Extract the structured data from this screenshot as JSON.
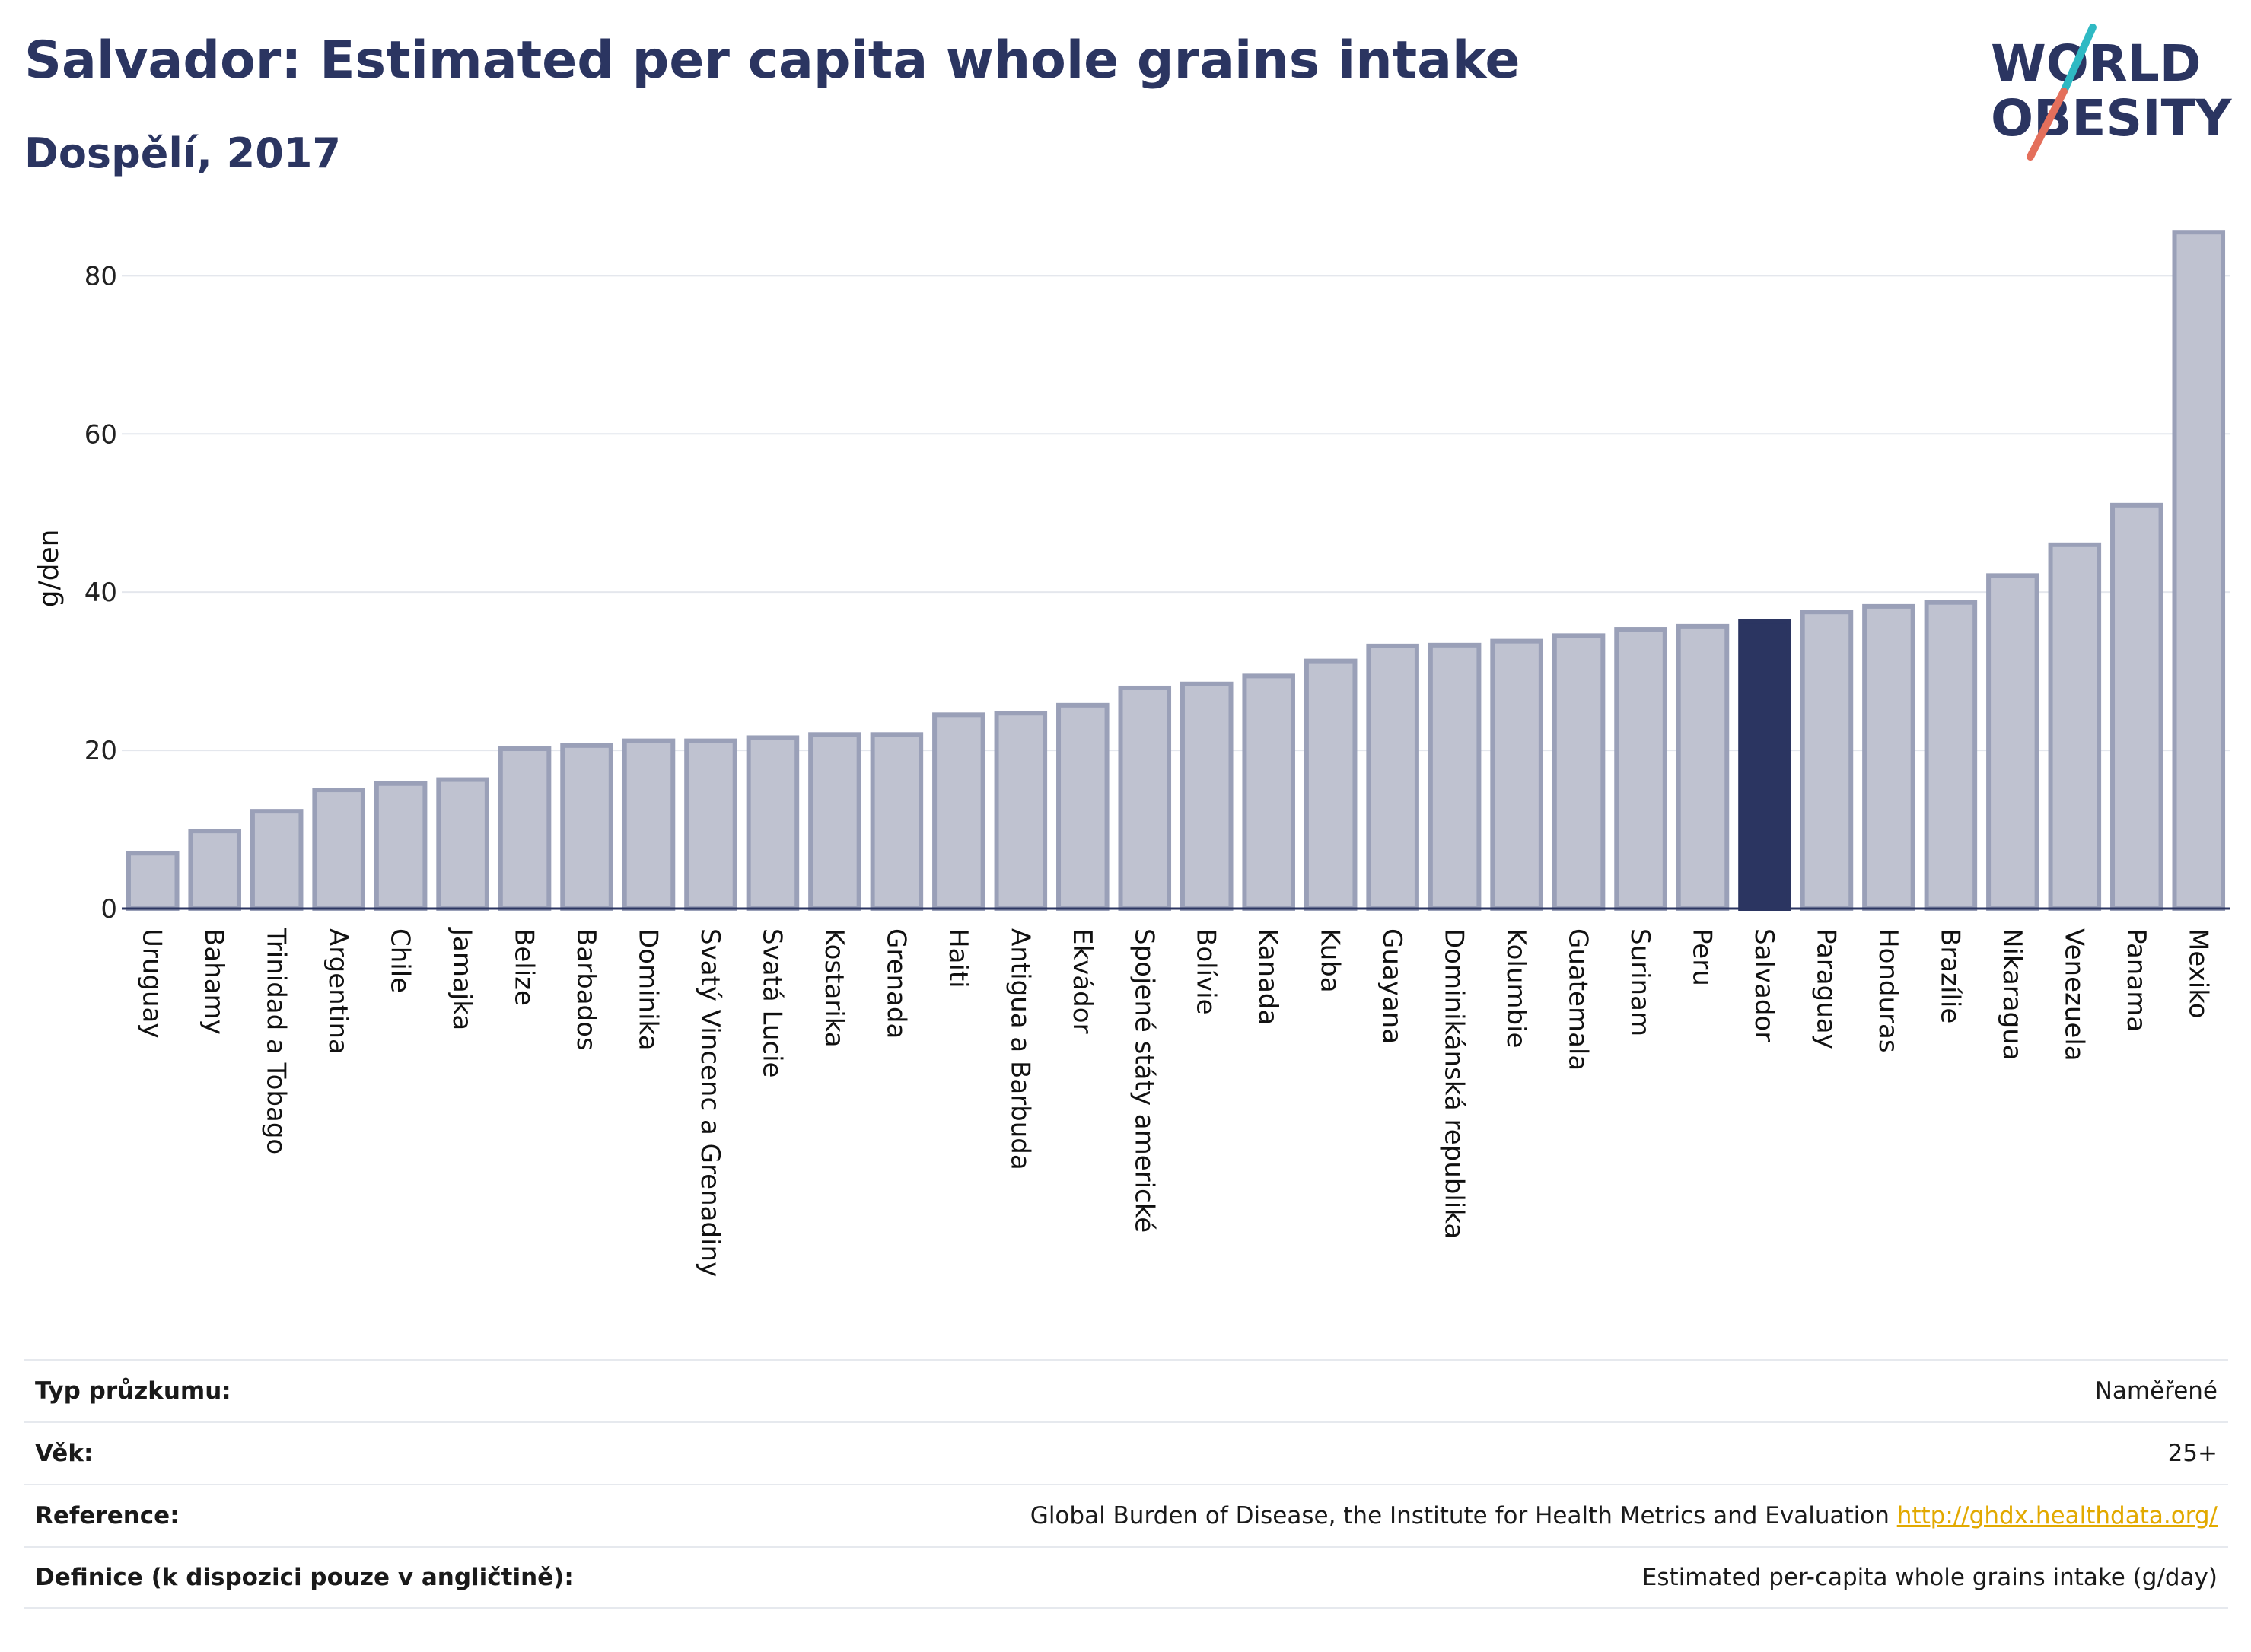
{
  "header": {
    "title": "Salvador: Estimated per capita whole grains intake",
    "subtitle": "Dospělí, 2017",
    "logo_line1": "WORLD",
    "logo_line2": "OBESITY"
  },
  "colors": {
    "bar": "#bfc2d0",
    "bar_border": "#9aa0b8",
    "highlight": "#2b3561",
    "title": "#2b3561",
    "logo_teal": "#2fb9c3",
    "logo_coral": "#e46f5b",
    "link": "#e2a900"
  },
  "chart_data": {
    "type": "bar",
    "ylabel": "g/den",
    "ylim": [
      0,
      86
    ],
    "yticks": [
      0,
      20,
      40,
      60,
      80
    ],
    "grid": true,
    "highlight": "Salvador",
    "categories": [
      "Uruguay",
      "Bahamy",
      "Trinidad a Tobago",
      "Argentina",
      "Chile",
      "Jamajka",
      "Belize",
      "Barbados",
      "Dominika",
      "Svatý Vincenc a Grenadiny",
      "Svatá Lucie",
      "Kostarika",
      "Grenada",
      "Haiti",
      "Antigua a Barbuda",
      "Ekvádor",
      "Spojené státy americké",
      "Bolívie",
      "Kanada",
      "Kuba",
      "Guayana",
      "Dominikánská republika",
      "Kolumbie",
      "Guatemala",
      "Surinam",
      "Peru",
      "Salvador",
      "Paraguay",
      "Honduras",
      "Brazílie",
      "Nikaragua",
      "Venezuela",
      "Panama",
      "Mexiko"
    ],
    "values": [
      7,
      9.8,
      12.3,
      15,
      15.8,
      16.3,
      20.2,
      20.6,
      21.2,
      21.2,
      21.6,
      22,
      22,
      24.5,
      24.7,
      25.7,
      27.9,
      28.4,
      29.4,
      31.3,
      33.2,
      33.3,
      33.8,
      34.5,
      35.3,
      35.7,
      36.3,
      37.5,
      38.2,
      38.7,
      42.1,
      46,
      51,
      85.5
    ]
  },
  "meta": {
    "rows": [
      {
        "label": "Typ průzkumu:",
        "value": "Naměřené",
        "link": ""
      },
      {
        "label": "Věk:",
        "value": "25+",
        "link": ""
      },
      {
        "label": "Reference:",
        "value": "Global Burden of Disease, the Institute for Health Metrics and Evaluation",
        "link": "http://ghdx.healthdata.org/"
      },
      {
        "label": "Definice (k dispozici pouze v angličtině):",
        "value": "Estimated per-capita whole grains intake (g/day)",
        "link": ""
      }
    ]
  }
}
